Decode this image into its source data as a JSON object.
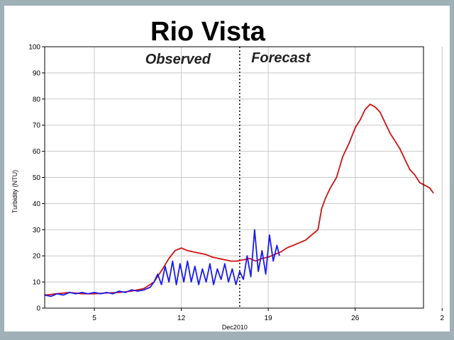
{
  "chart_data": {
    "type": "line",
    "title": "Rio Vista",
    "ylabel": "Turbidity (NTU)",
    "xlabel": "Dec2010",
    "ylim": [
      0,
      100
    ],
    "yticks": [
      0,
      10,
      20,
      30,
      40,
      50,
      60,
      70,
      80,
      90,
      100
    ],
    "xlim": [
      1,
      31.5
    ],
    "xticks": [
      {
        "day": 5,
        "label": "5"
      },
      {
        "day": 12,
        "label": "12"
      },
      {
        "day": 19,
        "label": "19"
      },
      {
        "day": 26,
        "label": "26"
      },
      {
        "day": 33,
        "label": "2"
      }
    ],
    "grid": true,
    "divider_day": 16.7,
    "annotations": {
      "left": "Observed",
      "right": "Forecast"
    },
    "colors": {
      "observed": "#1a1aee",
      "forecast": "#d01010",
      "grid": "#c8c8c8",
      "axis": "#000000"
    },
    "series": [
      {
        "key": "forecast",
        "points": [
          [
            1,
            5
          ],
          [
            2,
            5.5
          ],
          [
            3,
            6
          ],
          [
            4,
            5.5
          ],
          [
            5,
            5.5
          ],
          [
            6,
            5.8
          ],
          [
            7,
            6
          ],
          [
            8,
            6.5
          ],
          [
            9,
            7.5
          ],
          [
            9.8,
            10
          ],
          [
            10.5,
            15
          ],
          [
            11,
            19
          ],
          [
            11.5,
            22
          ],
          [
            12,
            23
          ],
          [
            12.5,
            22
          ],
          [
            13,
            21.5
          ],
          [
            13.5,
            21
          ],
          [
            14,
            20.5
          ],
          [
            14.5,
            19.5
          ],
          [
            15,
            19
          ],
          [
            15.5,
            18.5
          ],
          [
            16,
            18
          ],
          [
            16.5,
            18
          ],
          [
            17,
            18.5
          ],
          [
            17.5,
            19
          ],
          [
            18,
            18
          ],
          [
            18.5,
            19
          ],
          [
            19,
            19.5
          ],
          [
            19.5,
            20.5
          ],
          [
            20,
            21.5
          ],
          [
            20.5,
            23
          ],
          [
            21,
            24
          ],
          [
            21.5,
            25
          ],
          [
            22,
            26
          ],
          [
            22.5,
            28
          ],
          [
            23,
            30
          ],
          [
            23.3,
            38
          ],
          [
            23.6,
            42
          ],
          [
            24,
            46
          ],
          [
            24.5,
            50
          ],
          [
            25,
            58
          ],
          [
            25.5,
            63
          ],
          [
            26,
            69
          ],
          [
            26.4,
            72
          ],
          [
            26.8,
            76
          ],
          [
            27.2,
            78
          ],
          [
            27.6,
            77
          ],
          [
            28,
            75
          ],
          [
            28.4,
            71
          ],
          [
            28.8,
            67
          ],
          [
            29.2,
            64
          ],
          [
            29.6,
            61
          ],
          [
            30,
            57
          ],
          [
            30.4,
            53
          ],
          [
            30.8,
            51
          ],
          [
            31.2,
            48
          ],
          [
            31.6,
            47
          ],
          [
            32,
            46
          ],
          [
            32.3,
            44
          ]
        ]
      },
      {
        "key": "observed",
        "points": [
          [
            1,
            5
          ],
          [
            1.5,
            4.5
          ],
          [
            2,
            5.5
          ],
          [
            2.5,
            5
          ],
          [
            3,
            6
          ],
          [
            3.5,
            5.5
          ],
          [
            4,
            6
          ],
          [
            4.5,
            5.5
          ],
          [
            5,
            6
          ],
          [
            5.5,
            5.5
          ],
          [
            6,
            6
          ],
          [
            6.5,
            5.5
          ],
          [
            7,
            6.5
          ],
          [
            7.5,
            6
          ],
          [
            8,
            7
          ],
          [
            8.5,
            6.5
          ],
          [
            9,
            7
          ],
          [
            9.5,
            8
          ],
          [
            9.8,
            10
          ],
          [
            10.1,
            13
          ],
          [
            10.4,
            9
          ],
          [
            10.7,
            16
          ],
          [
            11,
            10
          ],
          [
            11.3,
            18
          ],
          [
            11.6,
            9
          ],
          [
            11.9,
            17
          ],
          [
            12.2,
            10
          ],
          [
            12.5,
            18
          ],
          [
            12.8,
            10
          ],
          [
            13.1,
            16
          ],
          [
            13.4,
            9
          ],
          [
            13.7,
            15
          ],
          [
            14,
            10
          ],
          [
            14.3,
            17
          ],
          [
            14.6,
            9
          ],
          [
            14.9,
            15
          ],
          [
            15.2,
            11
          ],
          [
            15.5,
            17
          ],
          [
            15.8,
            10
          ],
          [
            16.1,
            15
          ],
          [
            16.4,
            9
          ],
          [
            16.7,
            14
          ],
          [
            17,
            11
          ],
          [
            17.3,
            20
          ],
          [
            17.6,
            12
          ],
          [
            17.9,
            30
          ],
          [
            18.2,
            14
          ],
          [
            18.5,
            22
          ],
          [
            18.8,
            13
          ],
          [
            19.1,
            28
          ],
          [
            19.4,
            18
          ],
          [
            19.7,
            24
          ],
          [
            19.9,
            20
          ]
        ]
      }
    ]
  }
}
